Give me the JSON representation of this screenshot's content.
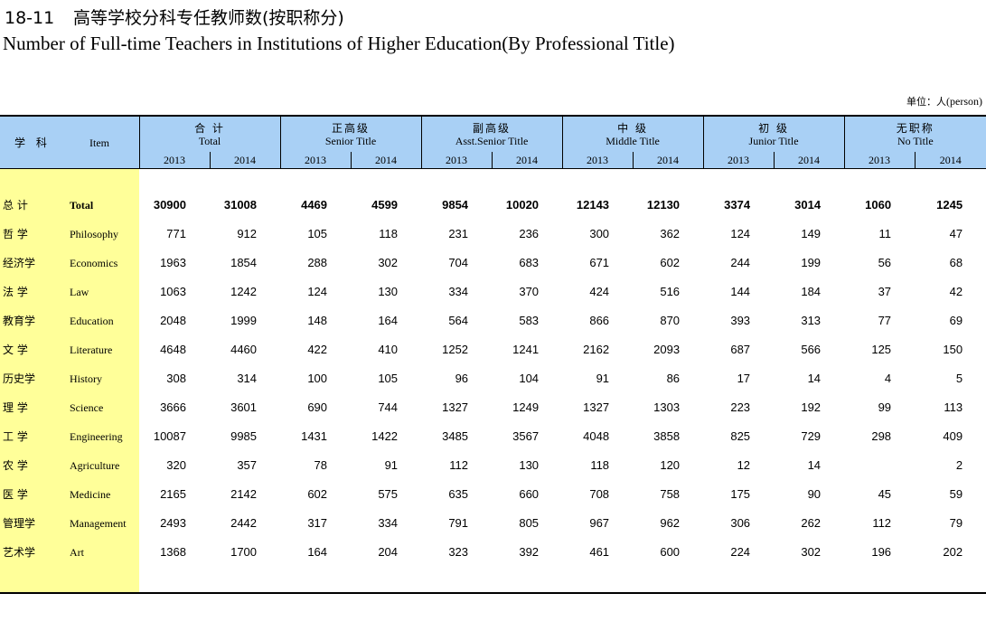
{
  "title": {
    "number": "18-11",
    "zh": "高等学校分科专任教师数(按职称分)",
    "en": "Number of Full-time Teachers in Institutions of Higher Education(By Professional Title)"
  },
  "unit": {
    "zh": "单位：人",
    "en": "(person)"
  },
  "header": {
    "item_zh": "学 科",
    "item_en": "Item",
    "groups": [
      {
        "zh": "合 计",
        "en": "Total"
      },
      {
        "zh": "正高级",
        "en": "Senior Title"
      },
      {
        "zh": "副高级",
        "en": "Asst.Senior Title"
      },
      {
        "zh": "中 级",
        "en": "Middle Title"
      },
      {
        "zh": "初 级",
        "en": "Junior Title"
      },
      {
        "zh": "无职称",
        "en": "No Title"
      }
    ],
    "years": [
      "2013",
      "2014"
    ]
  },
  "rows": [
    {
      "zh": "总 计",
      "en": "Total",
      "values": [
        "30900",
        "31008",
        "4469",
        "4599",
        "9854",
        "10020",
        "12143",
        "12130",
        "3374",
        "3014",
        "1060",
        "1245"
      ]
    },
    {
      "zh": "哲 学",
      "en": "Philosophy",
      "values": [
        "771",
        "912",
        "105",
        "118",
        "231",
        "236",
        "300",
        "362",
        "124",
        "149",
        "11",
        "47"
      ]
    },
    {
      "zh": "经济学",
      "en": "Economics",
      "values": [
        "1963",
        "1854",
        "288",
        "302",
        "704",
        "683",
        "671",
        "602",
        "244",
        "199",
        "56",
        "68"
      ]
    },
    {
      "zh": "法 学",
      "en": "Law",
      "values": [
        "1063",
        "1242",
        "124",
        "130",
        "334",
        "370",
        "424",
        "516",
        "144",
        "184",
        "37",
        "42"
      ]
    },
    {
      "zh": "教育学",
      "en": "Education",
      "values": [
        "2048",
        "1999",
        "148",
        "164",
        "564",
        "583",
        "866",
        "870",
        "393",
        "313",
        "77",
        "69"
      ]
    },
    {
      "zh": "文 学",
      "en": "Literature",
      "values": [
        "4648",
        "4460",
        "422",
        "410",
        "1252",
        "1241",
        "2162",
        "2093",
        "687",
        "566",
        "125",
        "150"
      ]
    },
    {
      "zh": "历史学",
      "en": "History",
      "values": [
        "308",
        "314",
        "100",
        "105",
        "96",
        "104",
        "91",
        "86",
        "17",
        "14",
        "4",
        "5"
      ]
    },
    {
      "zh": "理 学",
      "en": "Science",
      "values": [
        "3666",
        "3601",
        "690",
        "744",
        "1327",
        "1249",
        "1327",
        "1303",
        "223",
        "192",
        "99",
        "113"
      ]
    },
    {
      "zh": "工 学",
      "en": "Engineering",
      "values": [
        "10087",
        "9985",
        "1431",
        "1422",
        "3485",
        "3567",
        "4048",
        "3858",
        "825",
        "729",
        "298",
        "409"
      ]
    },
    {
      "zh": "农 学",
      "en": "Agriculture",
      "values": [
        "320",
        "357",
        "78",
        "91",
        "112",
        "130",
        "118",
        "120",
        "12",
        "14",
        "",
        "2"
      ]
    },
    {
      "zh": "医 学",
      "en": "Medicine",
      "values": [
        "2165",
        "2142",
        "602",
        "575",
        "635",
        "660",
        "708",
        "758",
        "175",
        "90",
        "45",
        "59"
      ]
    },
    {
      "zh": "管理学",
      "en": "Management",
      "values": [
        "2493",
        "2442",
        "317",
        "334",
        "791",
        "805",
        "967",
        "962",
        "306",
        "262",
        "112",
        "79"
      ]
    },
    {
      "zh": "艺术学",
      "en": "Art",
      "values": [
        "1368",
        "1700",
        "164",
        "204",
        "323",
        "392",
        "461",
        "600",
        "224",
        "302",
        "196",
        "202"
      ]
    }
  ]
}
